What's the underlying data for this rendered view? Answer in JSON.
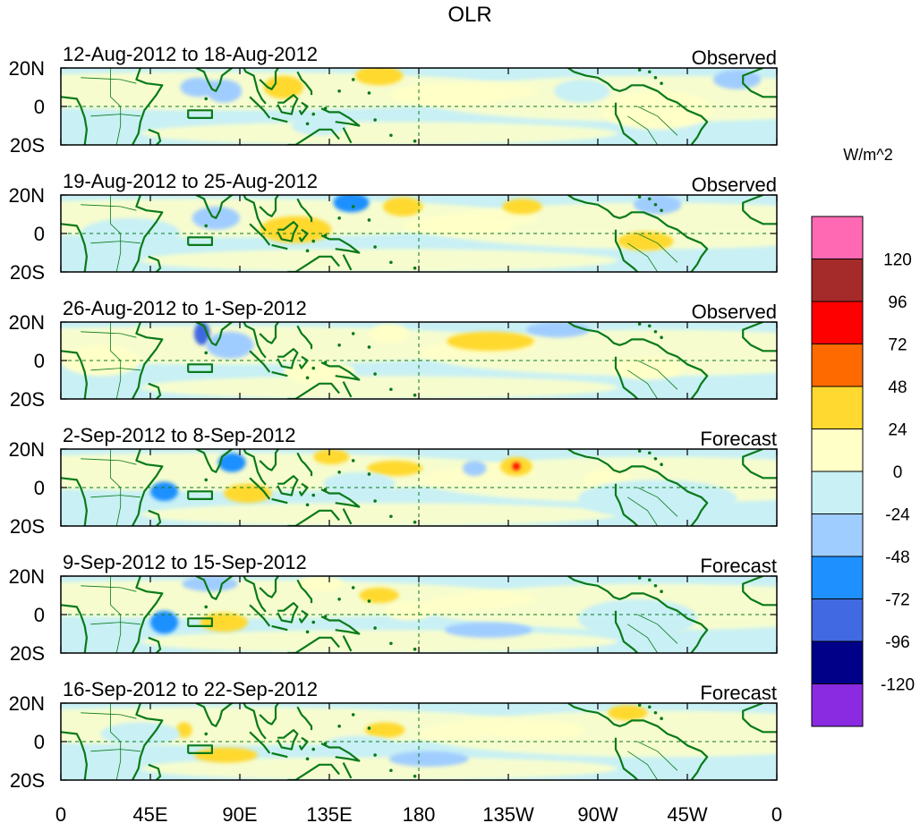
{
  "chart_data": {
    "type": "heatmap",
    "title": "OLR",
    "colorbar": {
      "units": "W/m^2",
      "levels": [
        120,
        96,
        72,
        48,
        24,
        0,
        -24,
        -48,
        -72,
        -96,
        -120
      ],
      "colors": [
        "#ff69b4",
        "#a52a2a",
        "#ff0000",
        "#ff6a00",
        "#ffd92f",
        "#ffffc8",
        "#c8f0f5",
        "#a0cdff",
        "#1e90ff",
        "#4169e1",
        "#000088",
        "#8a2be2"
      ]
    },
    "x_ticks": [
      "0",
      "45E",
      "90E",
      "135E",
      "180",
      "135W",
      "90W",
      "45W",
      "0"
    ],
    "y_ticks": [
      "20N",
      "0",
      "20S"
    ],
    "xlim_deg_east": [
      0,
      360
    ],
    "ylim_deg_lat": [
      -20,
      20
    ],
    "panels": [
      {
        "date_range": "12-Aug-2012 to 18-Aug-2012",
        "type_label": "Observed",
        "blobs": [
          {
            "lon": 82,
            "lat": 8,
            "rlon": 9,
            "rlat": 6,
            "v": -36
          },
          {
            "lon": 69,
            "lat": 10,
            "rlon": 9,
            "rlat": 5,
            "v": -46
          },
          {
            "lon": 112,
            "lat": 10,
            "rlon": 10,
            "rlat": 6,
            "v": 30
          },
          {
            "lon": 160,
            "lat": 16,
            "rlon": 12,
            "rlat": 5,
            "v": 30
          },
          {
            "lon": 195,
            "lat": 6,
            "rlon": 30,
            "rlat": 6,
            "v": 12
          },
          {
            "lon": 262,
            "lat": 8,
            "rlon": 14,
            "rlat": 6,
            "v": -20
          },
          {
            "lon": 300,
            "lat": -2,
            "rlon": 28,
            "rlat": 10,
            "v": 12
          },
          {
            "lon": 340,
            "lat": 14,
            "rlon": 12,
            "rlat": 5,
            "v": -30
          },
          {
            "lon": 20,
            "lat": -12,
            "rlon": 20,
            "rlat": 5,
            "v": -18
          },
          {
            "lon": 130,
            "lat": -10,
            "rlon": 14,
            "rlat": 5,
            "v": -16
          }
        ]
      },
      {
        "date_range": "19-Aug-2012 to 25-Aug-2012",
        "type_label": "Observed",
        "blobs": [
          {
            "lon": 146,
            "lat": 16,
            "rlon": 9,
            "rlat": 5,
            "v": -62
          },
          {
            "lon": 172,
            "lat": 14,
            "rlon": 10,
            "rlat": 5,
            "v": 32
          },
          {
            "lon": 118,
            "lat": 2,
            "rlon": 18,
            "rlat": 7,
            "v": 28
          },
          {
            "lon": 78,
            "lat": 8,
            "rlon": 12,
            "rlat": 6,
            "v": -40
          },
          {
            "lon": 232,
            "lat": 14,
            "rlon": 10,
            "rlat": 4,
            "v": 28
          },
          {
            "lon": 294,
            "lat": -4,
            "rlon": 14,
            "rlat": 5,
            "v": 30
          },
          {
            "lon": 300,
            "lat": 15,
            "rlon": 12,
            "rlat": 5,
            "v": -36
          },
          {
            "lon": 35,
            "lat": 0,
            "rlon": 25,
            "rlat": 8,
            "v": -18
          },
          {
            "lon": 200,
            "lat": 4,
            "rlon": 28,
            "rlat": 5,
            "v": 10
          }
        ]
      },
      {
        "date_range": "26-Aug-2012 to 1-Sep-2012",
        "type_label": "Observed",
        "blobs": [
          {
            "lon": 71,
            "lat": 14,
            "rlon": 4,
            "rlat": 6,
            "v": -80
          },
          {
            "lon": 85,
            "lat": 8,
            "rlon": 12,
            "rlat": 7,
            "v": -34
          },
          {
            "lon": 216,
            "lat": 10,
            "rlon": 22,
            "rlat": 5,
            "v": 32
          },
          {
            "lon": 165,
            "lat": 14,
            "rlon": 10,
            "rlat": 5,
            "v": 22
          },
          {
            "lon": 250,
            "lat": 16,
            "rlon": 16,
            "rlat": 4,
            "v": -28
          },
          {
            "lon": 295,
            "lat": -4,
            "rlon": 18,
            "rlat": 6,
            "v": 20
          },
          {
            "lon": 130,
            "lat": -6,
            "rlon": 18,
            "rlat": 6,
            "v": 12
          },
          {
            "lon": 20,
            "lat": 0,
            "rlon": 20,
            "rlat": 8,
            "v": 14
          }
        ]
      },
      {
        "date_range": "2-Sep-2012 to 8-Sep-2012",
        "type_label": "Forecast",
        "blobs": [
          {
            "lon": 52,
            "lat": -2,
            "rlon": 7,
            "rlat": 5,
            "v": -70
          },
          {
            "lon": 86,
            "lat": 13,
            "rlon": 7,
            "rlat": 5,
            "v": -56
          },
          {
            "lon": 94,
            "lat": -3,
            "rlon": 12,
            "rlat": 5,
            "v": 34
          },
          {
            "lon": 136,
            "lat": 16,
            "rlon": 9,
            "rlat": 4,
            "v": 30
          },
          {
            "lon": 168,
            "lat": 10,
            "rlon": 14,
            "rlat": 4,
            "v": 28
          },
          {
            "lon": 229,
            "lat": 11,
            "rlon": 8,
            "rlat": 5,
            "v": 38
          },
          {
            "lon": 229,
            "lat": 11,
            "rlon": 2,
            "rlat": 2,
            "v": 80
          },
          {
            "lon": 208,
            "lat": 10,
            "rlon": 6,
            "rlat": 4,
            "v": -30
          },
          {
            "lon": 275,
            "lat": 4,
            "rlon": 12,
            "rlat": 6,
            "v": 22
          },
          {
            "lon": 300,
            "lat": -6,
            "rlon": 40,
            "rlat": 10,
            "v": -14
          },
          {
            "lon": 150,
            "lat": 2,
            "rlon": 18,
            "rlat": 6,
            "v": -20
          }
        ]
      },
      {
        "date_range": "9-Sep-2012 to 15-Sep-2012",
        "type_label": "Forecast",
        "blobs": [
          {
            "lon": 52,
            "lat": -4,
            "rlon": 7,
            "rlat": 6,
            "v": -70
          },
          {
            "lon": 82,
            "lat": -4,
            "rlon": 12,
            "rlat": 5,
            "v": 30
          },
          {
            "lon": 160,
            "lat": 10,
            "rlon": 10,
            "rlat": 4,
            "v": 30
          },
          {
            "lon": 215,
            "lat": -8,
            "rlon": 22,
            "rlat": 4,
            "v": -34
          },
          {
            "lon": 175,
            "lat": 2,
            "rlon": 12,
            "rlat": 5,
            "v": 20
          },
          {
            "lon": 75,
            "lat": 16,
            "rlon": 14,
            "rlat": 4,
            "v": -28
          },
          {
            "lon": 130,
            "lat": 16,
            "rlon": 12,
            "rlat": 4,
            "v": 22
          },
          {
            "lon": 290,
            "lat": -2,
            "rlon": 30,
            "rlat": 10,
            "v": -12
          }
        ]
      },
      {
        "date_range": "16-Sep-2012 to 22-Sep-2012",
        "type_label": "Forecast",
        "blobs": [
          {
            "lon": 83,
            "lat": -7,
            "rlon": 16,
            "rlat": 4,
            "v": 32
          },
          {
            "lon": 62,
            "lat": 6,
            "rlon": 4,
            "rlat": 4,
            "v": 30
          },
          {
            "lon": 185,
            "lat": -9,
            "rlon": 20,
            "rlat": 4,
            "v": -34
          },
          {
            "lon": 163,
            "lat": 6,
            "rlon": 10,
            "rlat": 4,
            "v": 24
          },
          {
            "lon": 285,
            "lat": 15,
            "rlon": 10,
            "rlat": 4,
            "v": 28
          },
          {
            "lon": 150,
            "lat": -2,
            "rlon": 18,
            "rlat": 5,
            "v": -20
          },
          {
            "lon": 240,
            "lat": 6,
            "rlon": 24,
            "rlat": 5,
            "v": 12
          },
          {
            "lon": 40,
            "lat": 4,
            "rlon": 20,
            "rlat": 6,
            "v": -14
          }
        ]
      }
    ]
  }
}
